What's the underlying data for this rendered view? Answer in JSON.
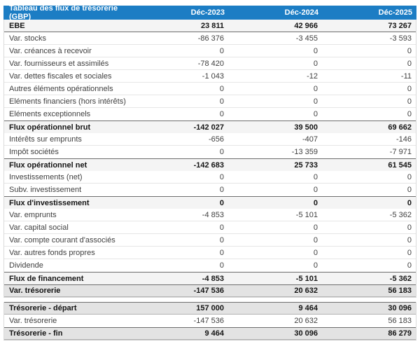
{
  "colors": {
    "header_bg": "#1c7dc4",
    "header_text": "#ffffff",
    "subtotal_row_bg": "#f4f4f4",
    "strong_row_bg": "#e3e3e3",
    "dark_border": "#6e6e6e",
    "light_border": "#e6e6e6",
    "outer_border": "#dadada"
  },
  "table": {
    "title": "Tableau des flux de trésorerie (GBP)",
    "columns": [
      "Déc-2023",
      "Déc-2024",
      "Déc-2025"
    ],
    "rows": [
      {
        "label": "EBE",
        "values": [
          "23 811",
          "42 966",
          "73 267"
        ],
        "style": "lead"
      },
      {
        "label": "Var. stocks",
        "values": [
          "-86 376",
          "-3 455",
          "-3 593"
        ],
        "style": "normal"
      },
      {
        "label": "Var. créances à recevoir",
        "values": [
          "0",
          "0",
          "0"
        ],
        "style": "normal"
      },
      {
        "label": "Var. fournisseurs et assimilés",
        "values": [
          "-78 420",
          "0",
          "0"
        ],
        "style": "normal"
      },
      {
        "label": "Var. dettes fiscales et sociales",
        "values": [
          "-1 043",
          "-12",
          "-11"
        ],
        "style": "normal"
      },
      {
        "label": "Autres éléments opérationnels",
        "values": [
          "0",
          "0",
          "0"
        ],
        "style": "normal"
      },
      {
        "label": "Eléments financiers (hors intérêts)",
        "values": [
          "0",
          "0",
          "0"
        ],
        "style": "normal"
      },
      {
        "label": "Eléments exceptionnels",
        "values": [
          "0",
          "0",
          "0"
        ],
        "style": "normal-mid"
      },
      {
        "label": "Flux opérationnel brut",
        "values": [
          "-142 027",
          "39 500",
          "69 662"
        ],
        "style": "subtotal"
      },
      {
        "label": "Intérêts sur emprunts",
        "values": [
          "-656",
          "-407",
          "-146"
        ],
        "style": "normal"
      },
      {
        "label": "Impôt sociétés",
        "values": [
          "0",
          "-13 359",
          "-7 971"
        ],
        "style": "normal-mid"
      },
      {
        "label": "Flux opérationnel net",
        "values": [
          "-142 683",
          "25 733",
          "61 545"
        ],
        "style": "subtotal"
      },
      {
        "label": "Investissements (net)",
        "values": [
          "0",
          "0",
          "0"
        ],
        "style": "normal"
      },
      {
        "label": "Subv. investissement",
        "values": [
          "0",
          "0",
          "0"
        ],
        "style": "normal-mid"
      },
      {
        "label": "Flux d'investissement",
        "values": [
          "0",
          "0",
          "0"
        ],
        "style": "subtotal"
      },
      {
        "label": "Var. emprunts",
        "values": [
          "-4 853",
          "-5 101",
          "-5 362"
        ],
        "style": "normal"
      },
      {
        "label": "Var. capital social",
        "values": [
          "0",
          "0",
          "0"
        ],
        "style": "normal"
      },
      {
        "label": "Var. compte courant d'associés",
        "values": [
          "0",
          "0",
          "0"
        ],
        "style": "normal"
      },
      {
        "label": "Var. autres fonds propres",
        "values": [
          "0",
          "0",
          "0"
        ],
        "style": "normal"
      },
      {
        "label": "Dividende",
        "values": [
          "0",
          "0",
          "0"
        ],
        "style": "normal-mid"
      },
      {
        "label": "Flux de financement",
        "values": [
          "-4 853",
          "-5 101",
          "-5 362"
        ],
        "style": "subtotal"
      },
      {
        "label": "Var. trésorerie",
        "values": [
          "-147 536",
          "20 632",
          "56 183"
        ],
        "style": "strong"
      }
    ],
    "footer_rows": [
      {
        "label": "Trésorerie - départ",
        "values": [
          "157 000",
          "9 464",
          "30 096"
        ],
        "style": "strong"
      },
      {
        "label": "Var. trésorerie",
        "values": [
          "-147 536",
          "20 632",
          "56 183"
        ],
        "style": "normal-mid"
      },
      {
        "label": "Trésorerie - fin",
        "values": [
          "9 464",
          "30 096",
          "86 279"
        ],
        "style": "strong"
      }
    ]
  }
}
